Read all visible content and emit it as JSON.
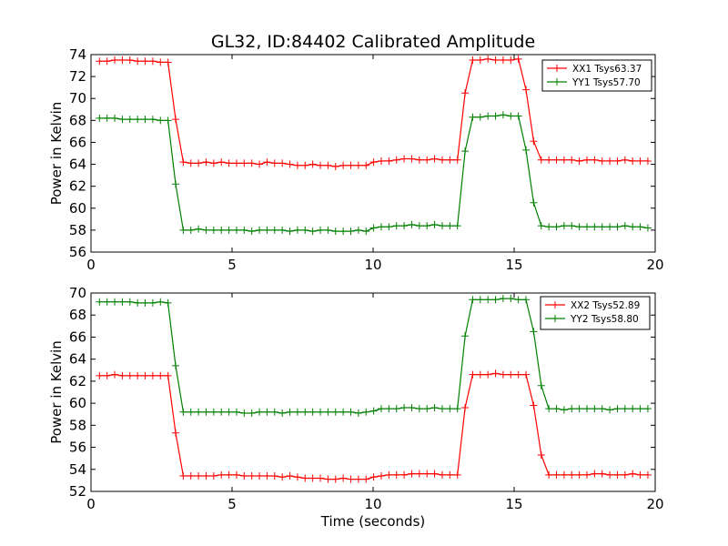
{
  "title": "GL32, ID:84402 Calibrated Amplitude",
  "colors": {
    "red": "#ff0000",
    "green": "#008000"
  },
  "chart_data": [
    {
      "type": "line",
      "title": "GL32, ID:84402 Calibrated Amplitude",
      "xlabel": "",
      "ylabel": "Power in Kelvin",
      "xlim": [
        0,
        20
      ],
      "ylim": [
        56,
        74
      ],
      "xticks": [
        "0",
        "5",
        "10",
        "15",
        "20"
      ],
      "yticks": [
        "56",
        "58",
        "60",
        "62",
        "64",
        "66",
        "68",
        "70",
        "72",
        "74"
      ],
      "legend_position": "top-right",
      "x": [
        0.3,
        0.57,
        0.84,
        1.11,
        1.38,
        1.65,
        1.92,
        2.19,
        2.46,
        2.73,
        3.0,
        3.27,
        3.54,
        3.81,
        4.08,
        4.35,
        4.62,
        4.89,
        5.16,
        5.43,
        5.7,
        5.97,
        6.24,
        6.51,
        6.78,
        7.05,
        7.32,
        7.59,
        7.86,
        8.13,
        8.4,
        8.67,
        8.94,
        9.21,
        9.48,
        9.75,
        10.02,
        10.29,
        10.56,
        10.83,
        11.1,
        11.37,
        11.64,
        11.91,
        12.18,
        12.45,
        12.72,
        12.99,
        13.26,
        13.53,
        13.8,
        14.07,
        14.34,
        14.61,
        14.88,
        15.15,
        15.42,
        15.69,
        15.96,
        16.23,
        16.5,
        16.77,
        17.04,
        17.31,
        17.58,
        17.85,
        18.12,
        18.39,
        18.66,
        18.93,
        19.2,
        19.47,
        19.74
      ],
      "series": [
        {
          "name": "XX1 Tsys63.37",
          "color": "#ff0000",
          "values": [
            73.4,
            73.4,
            73.5,
            73.5,
            73.5,
            73.4,
            73.4,
            73.4,
            73.3,
            73.3,
            68.1,
            64.2,
            64.1,
            64.1,
            64.2,
            64.1,
            64.2,
            64.1,
            64.1,
            64.1,
            64.1,
            64.0,
            64.2,
            64.1,
            64.1,
            64.0,
            63.9,
            63.9,
            64.0,
            63.9,
            63.9,
            63.8,
            63.9,
            63.9,
            63.9,
            63.9,
            64.2,
            64.3,
            64.3,
            64.4,
            64.5,
            64.5,
            64.4,
            64.4,
            64.5,
            64.4,
            64.4,
            64.4,
            70.5,
            73.5,
            73.5,
            73.6,
            73.5,
            73.5,
            73.5,
            73.6,
            70.8,
            66.1,
            64.4,
            64.4,
            64.4,
            64.4,
            64.4,
            64.3,
            64.4,
            64.4,
            64.3,
            64.3,
            64.3,
            64.4,
            64.3,
            64.3,
            64.3
          ]
        },
        {
          "name": "YY1 Tsys57.70",
          "color": "#008000",
          "values": [
            68.2,
            68.2,
            68.2,
            68.1,
            68.1,
            68.1,
            68.1,
            68.1,
            68.0,
            68.0,
            62.2,
            58.0,
            58.0,
            58.1,
            58.0,
            58.0,
            58.0,
            58.0,
            58.0,
            58.0,
            57.9,
            58.0,
            58.0,
            58.0,
            58.0,
            57.9,
            58.0,
            58.0,
            57.9,
            58.0,
            58.0,
            57.9,
            57.9,
            57.9,
            58.0,
            57.9,
            58.2,
            58.3,
            58.3,
            58.4,
            58.4,
            58.5,
            58.4,
            58.4,
            58.5,
            58.4,
            58.4,
            58.4,
            65.2,
            68.3,
            68.3,
            68.4,
            68.4,
            68.5,
            68.4,
            68.4,
            65.3,
            60.5,
            58.4,
            58.3,
            58.3,
            58.4,
            58.4,
            58.3,
            58.3,
            58.3,
            58.3,
            58.3,
            58.3,
            58.4,
            58.3,
            58.3,
            58.2
          ]
        }
      ]
    },
    {
      "type": "line",
      "title": "",
      "xlabel": "Time (seconds)",
      "ylabel": "Power in Kelvin",
      "xlim": [
        0,
        20
      ],
      "ylim": [
        52,
        70
      ],
      "xticks": [
        "0",
        "5",
        "10",
        "15",
        "20"
      ],
      "yticks": [
        "52",
        "54",
        "56",
        "58",
        "60",
        "62",
        "64",
        "66",
        "68",
        "70"
      ],
      "legend_position": "top-right",
      "x": [
        0.3,
        0.57,
        0.84,
        1.11,
        1.38,
        1.65,
        1.92,
        2.19,
        2.46,
        2.73,
        3.0,
        3.27,
        3.54,
        3.81,
        4.08,
        4.35,
        4.62,
        4.89,
        5.16,
        5.43,
        5.7,
        5.97,
        6.24,
        6.51,
        6.78,
        7.05,
        7.32,
        7.59,
        7.86,
        8.13,
        8.4,
        8.67,
        8.94,
        9.21,
        9.48,
        9.75,
        10.02,
        10.29,
        10.56,
        10.83,
        11.1,
        11.37,
        11.64,
        11.91,
        12.18,
        12.45,
        12.72,
        12.99,
        13.26,
        13.53,
        13.8,
        14.07,
        14.34,
        14.61,
        14.88,
        15.15,
        15.42,
        15.69,
        15.96,
        16.23,
        16.5,
        16.77,
        17.04,
        17.31,
        17.58,
        17.85,
        18.12,
        18.39,
        18.66,
        18.93,
        19.2,
        19.47,
        19.74
      ],
      "series": [
        {
          "name": "XX2 Tsys52.89",
          "color": "#ff0000",
          "values": [
            62.5,
            62.5,
            62.6,
            62.5,
            62.5,
            62.5,
            62.5,
            62.5,
            62.5,
            62.5,
            57.3,
            53.4,
            53.4,
            53.4,
            53.4,
            53.4,
            53.5,
            53.5,
            53.5,
            53.4,
            53.4,
            53.4,
            53.4,
            53.4,
            53.3,
            53.4,
            53.3,
            53.2,
            53.2,
            53.2,
            53.1,
            53.1,
            53.2,
            53.1,
            53.1,
            53.1,
            53.3,
            53.4,
            53.5,
            53.5,
            53.5,
            53.6,
            53.6,
            53.6,
            53.6,
            53.5,
            53.5,
            53.5,
            59.6,
            62.6,
            62.6,
            62.6,
            62.7,
            62.6,
            62.6,
            62.6,
            62.6,
            59.8,
            55.3,
            53.5,
            53.5,
            53.5,
            53.5,
            53.5,
            53.5,
            53.6,
            53.6,
            53.5,
            53.5,
            53.5,
            53.6,
            53.5,
            53.5
          ]
        },
        {
          "name": "YY2 Tsys58.80",
          "color": "#008000",
          "values": [
            69.2,
            69.2,
            69.2,
            69.2,
            69.2,
            69.1,
            69.1,
            69.1,
            69.2,
            69.1,
            63.4,
            59.2,
            59.2,
            59.2,
            59.2,
            59.2,
            59.2,
            59.2,
            59.2,
            59.1,
            59.1,
            59.2,
            59.2,
            59.2,
            59.1,
            59.2,
            59.2,
            59.2,
            59.2,
            59.2,
            59.2,
            59.2,
            59.2,
            59.2,
            59.1,
            59.2,
            59.3,
            59.5,
            59.5,
            59.5,
            59.6,
            59.6,
            59.5,
            59.5,
            59.6,
            59.5,
            59.5,
            59.5,
            66.1,
            69.4,
            69.4,
            69.4,
            69.4,
            69.5,
            69.5,
            69.4,
            69.4,
            66.5,
            61.6,
            59.5,
            59.5,
            59.4,
            59.5,
            59.5,
            59.5,
            59.5,
            59.5,
            59.4,
            59.5,
            59.5,
            59.5,
            59.5,
            59.5
          ]
        }
      ]
    }
  ]
}
